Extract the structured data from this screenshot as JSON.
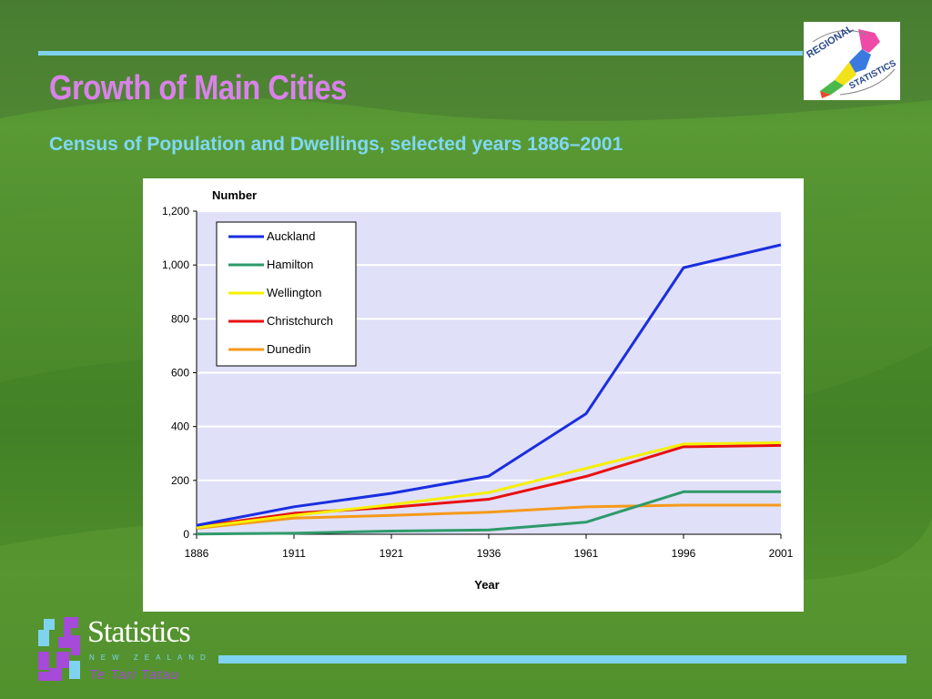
{
  "slide": {
    "title": "Growth of Main Cities",
    "subtitle": "Census of Population and Dwellings, selected years 1886–2001"
  },
  "logos": {
    "regional_statistics": {
      "line1": "REGIONAL",
      "line2": "STATISTICS"
    },
    "stats_nz": {
      "name": "Statistics",
      "country": "NEW ZEALAND",
      "maori": "Te Tari Tatau"
    }
  },
  "colors": {
    "title": "#d982ea",
    "subtitle": "#7fd8f6",
    "rule": "#7fd3f0",
    "plot_area": "#e0e0f8"
  },
  "chart_data": {
    "type": "line",
    "title": "",
    "xlabel": "Year",
    "ylabel": "Number",
    "categories": [
      "1886",
      "1911",
      "1921",
      "1936",
      "1961",
      "1996",
      "2001"
    ],
    "ylim": [
      0,
      1200
    ],
    "yticks": [
      "0",
      "200",
      "400",
      "600",
      "800",
      "1,000",
      "1,200"
    ],
    "grid": true,
    "legend": "top-left",
    "series": [
      {
        "name": "Auckland",
        "color": "#1a2ee0",
        "values": [
          33,
          102,
          152,
          216,
          448,
          990,
          1075
        ]
      },
      {
        "name": "Hamilton",
        "color": "#2e9a6a",
        "values": [
          1,
          4,
          12,
          16,
          45,
          158,
          158
        ]
      },
      {
        "name": "Wellington",
        "color": "#f5f000",
        "values": [
          25,
          70,
          110,
          155,
          245,
          335,
          340
        ]
      },
      {
        "name": "Christchurch",
        "color": "#e81010",
        "values": [
          28,
          78,
          100,
          130,
          215,
          325,
          330
        ]
      },
      {
        "name": "Dunedin",
        "color": "#f59a1a",
        "values": [
          22,
          60,
          70,
          82,
          102,
          108,
          108
        ]
      }
    ]
  }
}
